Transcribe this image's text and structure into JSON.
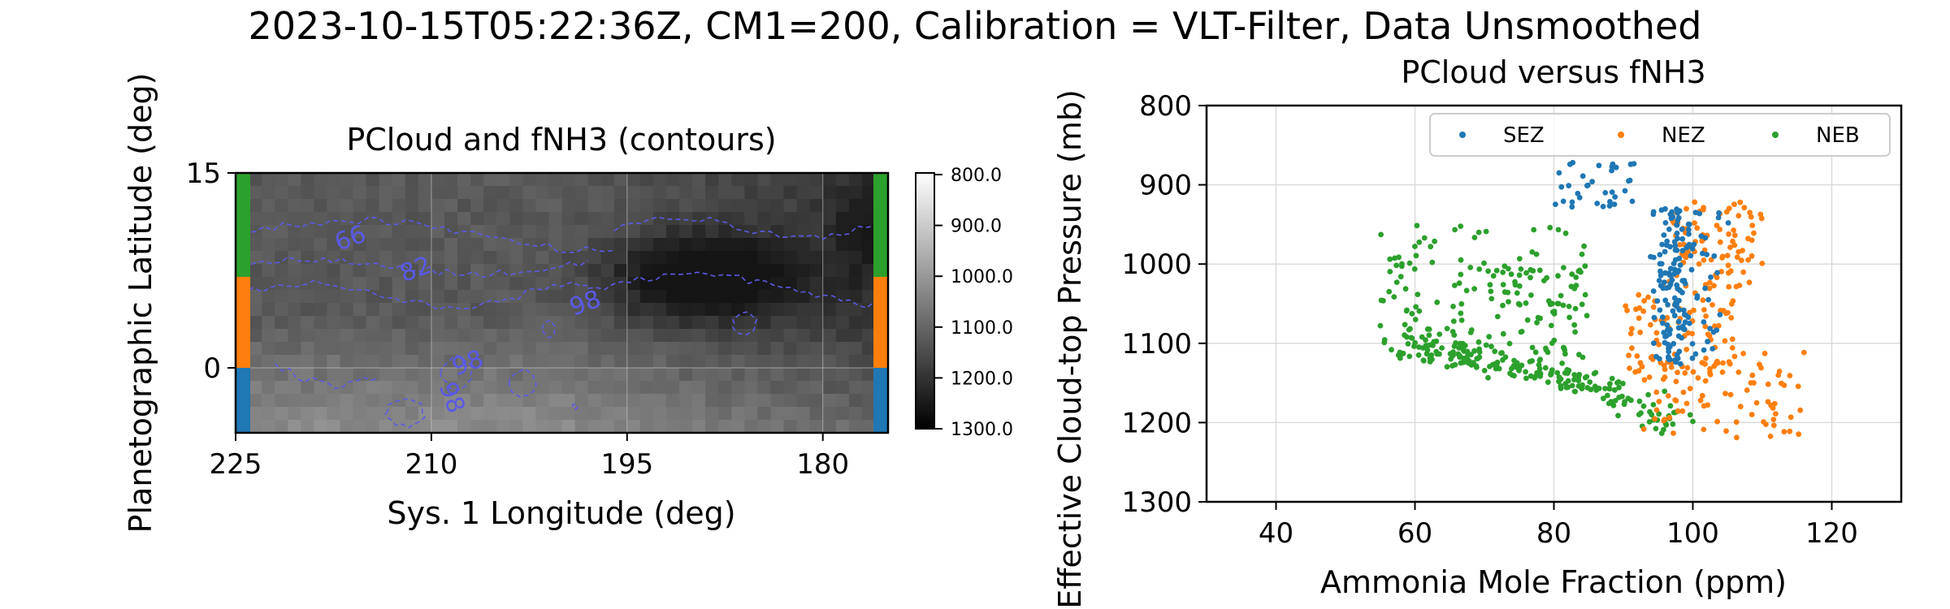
{
  "figure": {
    "suptitle": "2023-10-15T05:22:36Z, CM1=200, Calibration = VLT-Filter, Data Unsmoothed"
  },
  "colors": {
    "SEZ": "#1f77b4",
    "NEZ": "#ff7f0e",
    "NEB": "#2ca02c",
    "contour": "#5a5ae6",
    "grid": "#d8d8d8"
  },
  "chart_data": [
    {
      "type": "heatmap",
      "title": "PCloud and fNH3 (contours)",
      "xlabel": "Sys. 1 Longitude (deg)",
      "ylabel": "Planetographic Latitude (deg)",
      "xlim": [
        225,
        175
      ],
      "ylim": [
        -5,
        15
      ],
      "xticks": [
        "225",
        "210",
        "195",
        "180"
      ],
      "yticks": [
        "15",
        "0"
      ],
      "colorbar": {
        "range": [
          800,
          1300
        ],
        "cmap": "gray_r",
        "ticks": [
          "800.0",
          "900.0",
          "1000.0",
          "1100.0",
          "1200.0",
          "1300.0"
        ]
      },
      "contour_labels": [
        "66",
        "82",
        "98",
        "98",
        "98"
      ],
      "band_strips": [
        {
          "name": "NEB",
          "lat_range": [
            7,
            15
          ],
          "color": "#2ca02c"
        },
        {
          "name": "NEZ",
          "lat_range": [
            0,
            7
          ],
          "color": "#ff7f0e"
        },
        {
          "name": "SEZ",
          "lat_range": [
            -5,
            0
          ],
          "color": "#1f77b4"
        }
      ],
      "grid": true
    },
    {
      "type": "scatter",
      "title": "PCloud versus fNH3",
      "xlabel": "Ammonia Mole Fraction (ppm)",
      "ylabel": "Effective Cloud-top Pressure (mb)",
      "xlim": [
        30,
        130
      ],
      "ylim": [
        1300,
        800
      ],
      "xticks": [
        "40",
        "60",
        "80",
        "100",
        "120"
      ],
      "yticks": [
        "800",
        "900",
        "1000",
        "1100",
        "1200",
        "1300"
      ],
      "legend": {
        "position": "top-right",
        "entries": [
          "SEZ",
          "NEZ",
          "NEB"
        ]
      },
      "grid": true,
      "series": [
        {
          "name": "SEZ",
          "x_range": [
            80,
            105
          ],
          "y_range": [
            870,
            1130
          ],
          "approx_points": 200
        },
        {
          "name": "NEZ",
          "x_range": [
            88,
            119
          ],
          "y_range": [
            920,
            1225
          ],
          "approx_points": 260
        },
        {
          "name": "NEB",
          "x_range": [
            54,
            100
          ],
          "y_range": [
            945,
            1240
          ],
          "approx_points": 380
        }
      ]
    }
  ]
}
